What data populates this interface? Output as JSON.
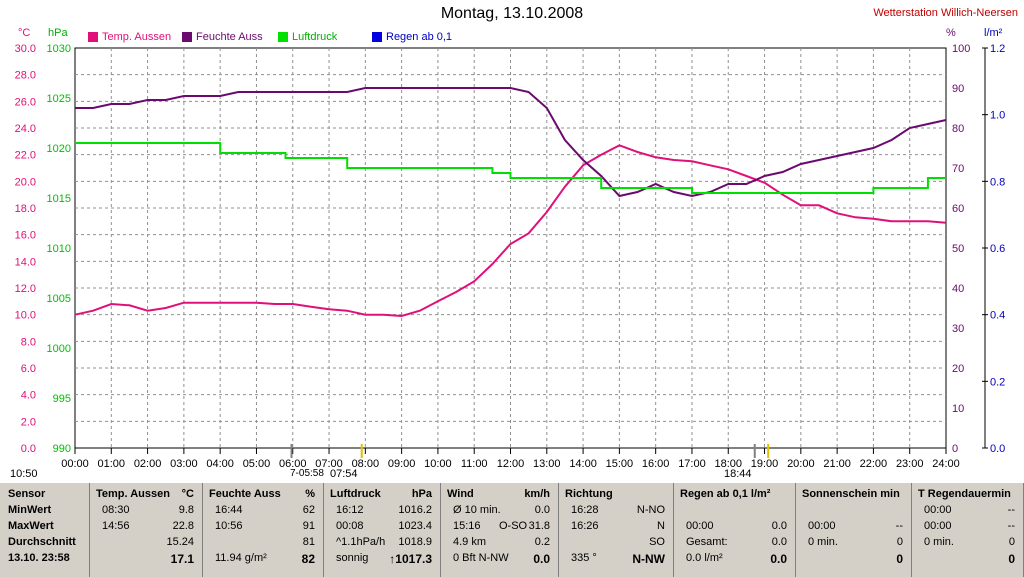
{
  "title": "Montag, 13.10.2008",
  "station": "Wetterstation Willich-Neersen",
  "units": {
    "temp": "°C",
    "pressure": "hPa",
    "humidity": "%",
    "rain": "l/m²"
  },
  "legend": [
    {
      "name": "Temp. Aussen",
      "color": "#e0107a"
    },
    {
      "name": "Feuchte Auss",
      "color": "#6a0a6e"
    },
    {
      "name": "Luftdruck",
      "color": "#00e000"
    },
    {
      "name": "Regen ab 0,1",
      "color": "#0000e0"
    }
  ],
  "markers": {
    "start": "10:50",
    "sunrise": "7-05:58",
    "sun_noon": "07:54",
    "sunset": "18:44"
  },
  "chart_data": {
    "type": "line",
    "xlabel": "",
    "x_ticks": [
      "00:00",
      "01:00",
      "02:00",
      "03:00",
      "04:00",
      "05:00",
      "06:00",
      "07:00",
      "08:00",
      "09:00",
      "10:00",
      "11:00",
      "12:00",
      "13:00",
      "14:00",
      "15:00",
      "16:00",
      "17:00",
      "18:00",
      "19:00",
      "20:00",
      "21:00",
      "22:00",
      "23:00",
      "24:00"
    ],
    "axes": {
      "temp": {
        "min": 0,
        "max": 30,
        "ticks": [
          "0.0",
          "2.0",
          "4.0",
          "6.0",
          "8.0",
          "10.0",
          "12.0",
          "14.0",
          "16.0",
          "18.0",
          "20.0",
          "22.0",
          "24.0",
          "26.0",
          "28.0",
          "30.0"
        ]
      },
      "pressure": {
        "min": 990,
        "max": 1030,
        "ticks": [
          "990",
          "995",
          "1000",
          "1005",
          "1010",
          "1015",
          "1020",
          "1025",
          "1030"
        ]
      },
      "humidity": {
        "min": 0,
        "max": 100,
        "ticks": [
          "0",
          "10",
          "20",
          "30",
          "40",
          "50",
          "60",
          "70",
          "80",
          "90",
          "100"
        ]
      },
      "rain": {
        "min": 0,
        "max": 1.2,
        "ticks": [
          "0.0",
          "0.2",
          "0.4",
          "0.6",
          "0.8",
          "1.0",
          "1.2"
        ]
      }
    },
    "series": [
      {
        "name": "Temp. Aussen",
        "axis": "temp",
        "x": [
          0,
          0.5,
          1,
          1.5,
          2,
          2.5,
          3,
          3.5,
          4,
          4.5,
          5,
          5.5,
          6,
          6.5,
          7,
          7.5,
          8,
          8.5,
          9,
          9.5,
          10,
          10.5,
          11,
          11.5,
          12,
          12.5,
          13,
          13.5,
          14,
          14.5,
          15,
          15.5,
          16,
          16.5,
          17,
          17.5,
          18,
          18.5,
          19,
          19.5,
          20,
          20.5,
          21,
          21.5,
          22,
          22.5,
          23,
          23.5,
          24
        ],
        "y": [
          10.0,
          10.3,
          10.8,
          10.7,
          10.3,
          10.5,
          10.9,
          10.9,
          10.9,
          10.9,
          10.9,
          10.8,
          10.8,
          10.6,
          10.4,
          10.3,
          10.0,
          10.0,
          9.9,
          10.3,
          11.0,
          11.7,
          12.5,
          13.8,
          15.3,
          16.1,
          17.7,
          19.6,
          21.2,
          22.0,
          22.7,
          22.2,
          21.8,
          21.6,
          21.5,
          21.2,
          20.9,
          20.4,
          19.9,
          19.0,
          18.2,
          18.2,
          17.6,
          17.3,
          17.2,
          17.0,
          17.0,
          17.0,
          16.9
        ]
      },
      {
        "name": "Feuchte Auss",
        "axis": "humidity",
        "x": [
          0,
          0.5,
          1,
          1.5,
          2,
          2.5,
          3,
          3.5,
          4,
          4.5,
          5,
          5.5,
          6,
          6.5,
          7,
          7.5,
          8,
          8.5,
          9,
          9.5,
          10,
          10.5,
          11,
          11.5,
          12,
          12.5,
          13,
          13.5,
          14,
          14.5,
          15,
          15.5,
          16,
          16.5,
          17,
          17.5,
          18,
          18.5,
          19,
          19.5,
          20,
          20.5,
          21,
          21.5,
          22,
          22.5,
          23,
          23.5,
          24
        ],
        "y": [
          85,
          85,
          86,
          86,
          87,
          87,
          88,
          88,
          88,
          89,
          89,
          89,
          89,
          89,
          89,
          89,
          90,
          90,
          90,
          90,
          90,
          90,
          90,
          90,
          90,
          89,
          85,
          77,
          72,
          68,
          63,
          64,
          66,
          64,
          63,
          64,
          66,
          66,
          68,
          69,
          71,
          72,
          73,
          74,
          75,
          77,
          80,
          81,
          82
        ]
      },
      {
        "name": "Luftdruck",
        "axis": "pressure",
        "x": [
          0,
          0.2,
          0.3,
          1,
          2,
          3,
          3.5,
          4,
          4.5,
          5,
          5.2,
          5.8,
          6,
          6.5,
          7,
          7.5,
          8,
          9,
          10,
          10.5,
          11,
          11.5,
          12,
          13,
          13.5,
          14,
          14.5,
          15,
          15.5,
          16,
          16.5,
          17,
          17.5,
          18,
          18.5,
          19,
          19.5,
          20,
          20.5,
          21,
          21.5,
          22,
          22.5,
          23,
          23.5,
          24
        ],
        "y": [
          1020.5,
          1020.5,
          1020.5,
          1020.5,
          1020.5,
          1020.5,
          1020.5,
          1019.5,
          1019.5,
          1019.5,
          1019.5,
          1019.0,
          1019.0,
          1019.0,
          1019.0,
          1018.0,
          1018.0,
          1018.0,
          1018.0,
          1018.0,
          1018.0,
          1017.5,
          1017.0,
          1017.0,
          1017.0,
          1017.0,
          1016.0,
          1016.0,
          1016.0,
          1016.0,
          1016.0,
          1015.5,
          1015.5,
          1015.5,
          1015.5,
          1015.5,
          1015.5,
          1015.5,
          1015.5,
          1015.5,
          1015.5,
          1016.0,
          1016.0,
          1016.0,
          1017.0,
          1017.0
        ]
      },
      {
        "name": "Regen ab 0,1",
        "axis": "rain",
        "x": [],
        "y": []
      }
    ]
  },
  "table": [
    {
      "label": "Sensor",
      "rows": [
        "MinWert",
        "MaxWert",
        "Durchschnitt",
        "13.10.  23:58"
      ]
    },
    {
      "head": "Temp. Aussen",
      "unit": "°C",
      "r1a": "08:30",
      "r1b": "9.8",
      "r2a": "14:56",
      "r2b": "22.8",
      "r3a": "",
      "r3b": "15.24",
      "r4a": "",
      "r4b": "17.1"
    },
    {
      "head": "Feuchte Auss",
      "unit": "%",
      "r1a": "16:44",
      "r1b": "62",
      "r2a": "10:56",
      "r2b": "91",
      "r3a": "",
      "r3b": "81",
      "r4a": "11.94 g/m²",
      "r4b": "82"
    },
    {
      "head": "Luftdruck",
      "unit": "hPa",
      "r1a": "16:12",
      "r1b": "1016.2",
      "r2a": "00:08",
      "r2b": "1023.4",
      "r3a": "^1.1hPa/h",
      "r3b": "1018.9",
      "r4a": "sonnig",
      "r4b": "↑1017.3"
    },
    {
      "head": "Wind",
      "unit": "km/h",
      "r1a": "Ø 10 min.",
      "r1b": "0.0",
      "r2a": "15:16",
      "r2m": "O-SO",
      "r2b": "31.8",
      "r3a": "4.9 km",
      "r3b": "0.2",
      "r4a": "0 Bft N-NW",
      "r4b": "0.0"
    },
    {
      "head": "Richtung",
      "unit": "",
      "r1a": "16:28",
      "r1b": "N-NO",
      "r2a": "16:26",
      "r2b": "N",
      "r3a": "",
      "r3b": "SO",
      "r4a": "335 °",
      "r4b": "N-NW"
    },
    {
      "head": "Regen ab 0,1  l/m²",
      "unit": "",
      "r1a": "",
      "r1b": "",
      "r2a": "00:00",
      "r2b": "0.0",
      "r3a": "Gesamt:",
      "r3b": "0.0",
      "r4a": "0.0 l/m²",
      "r4b": "0.0"
    },
    {
      "head": "Sonnenschein min",
      "unit": "",
      "r1a": "",
      "r1b": "",
      "r2a": "00:00",
      "r2b": "--",
      "r3a": "0 min.",
      "r3b": "0",
      "r4a": "",
      "r4b": "0"
    },
    {
      "head": "T Regendauermin",
      "unit": "",
      "r1a": "00:00",
      "r1b": "--",
      "r2a": "00:00",
      "r2b": "--",
      "r3a": "0 min.",
      "r3b": "0",
      "r4a": "",
      "r4b": "0"
    }
  ]
}
